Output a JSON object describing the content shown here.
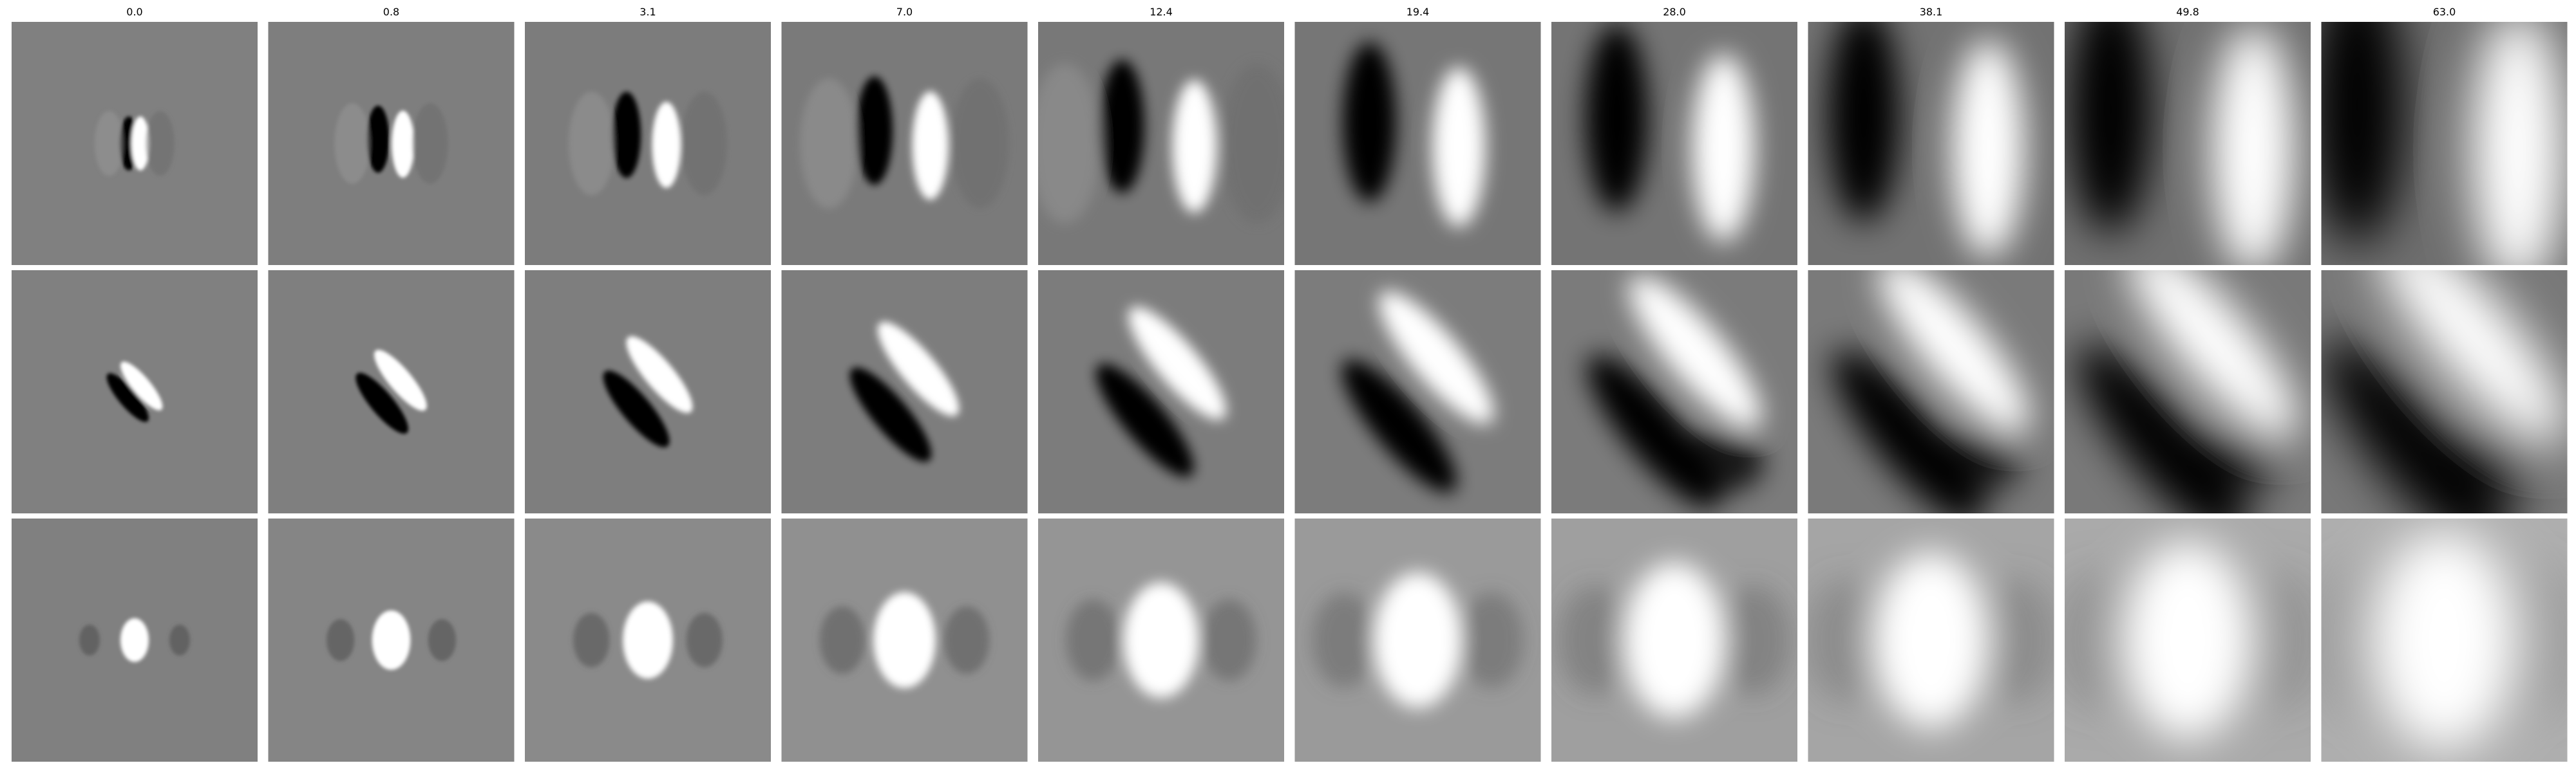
{
  "figure": {
    "column_titles": [
      "0.0",
      "0.8",
      "3.1",
      "7.0",
      "12.4",
      "19.4",
      "28.0",
      "38.1",
      "49.8",
      "63.0"
    ],
    "rows": 3,
    "colormap": "grayscale",
    "background_color": "#ffffff",
    "mid_gray": "#7f7f7f"
  }
}
